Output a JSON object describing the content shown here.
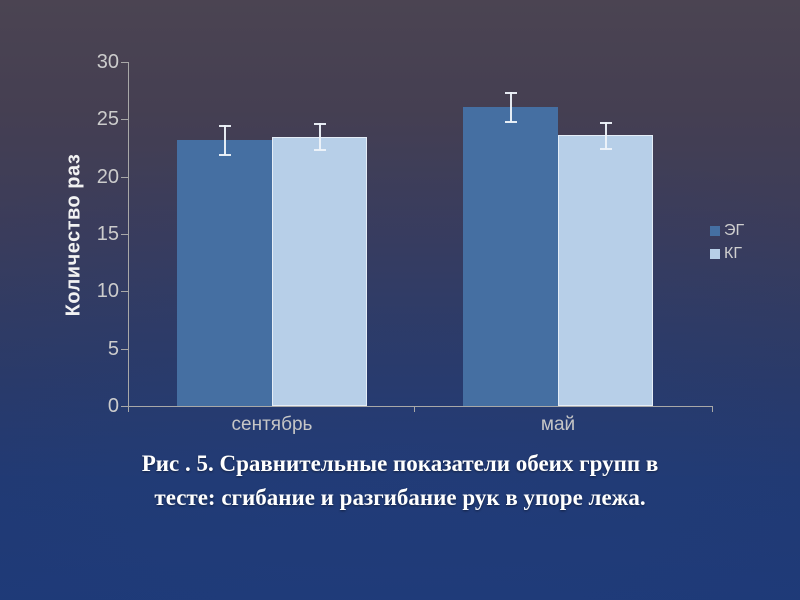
{
  "chart_data": {
    "type": "bar",
    "title": "",
    "categories": [
      "сентябрь",
      "май"
    ],
    "series": [
      {
        "name": "ЭГ",
        "color": "#456fa2",
        "values": [
          23.2,
          26.1
        ],
        "errors": [
          1.3,
          1.3
        ]
      },
      {
        "name": "КГ",
        "color": "#b7cfe8",
        "values": [
          23.5,
          23.6
        ],
        "errors": [
          1.2,
          1.2
        ]
      }
    ],
    "xlabel": "",
    "ylabel": "Количество раз",
    "ylim": [
      0,
      30
    ],
    "yticks": [
      0,
      5,
      10,
      15,
      20,
      25,
      30
    ],
    "grid": false,
    "legend_position": "right",
    "error_bars": true
  },
  "colors": {
    "axis": "#a8a8a8",
    "tick_text": "#cccccc",
    "error_bar": "#eef3fa",
    "background_top": "#4b4452",
    "background_bottom": "#1e3a77"
  },
  "caption": {
    "lines": [
      "Рис . 5. Сравнительные показатели обеих групп в",
      "тесте: сгибание и разгибание рук в упоре лежа."
    ]
  }
}
